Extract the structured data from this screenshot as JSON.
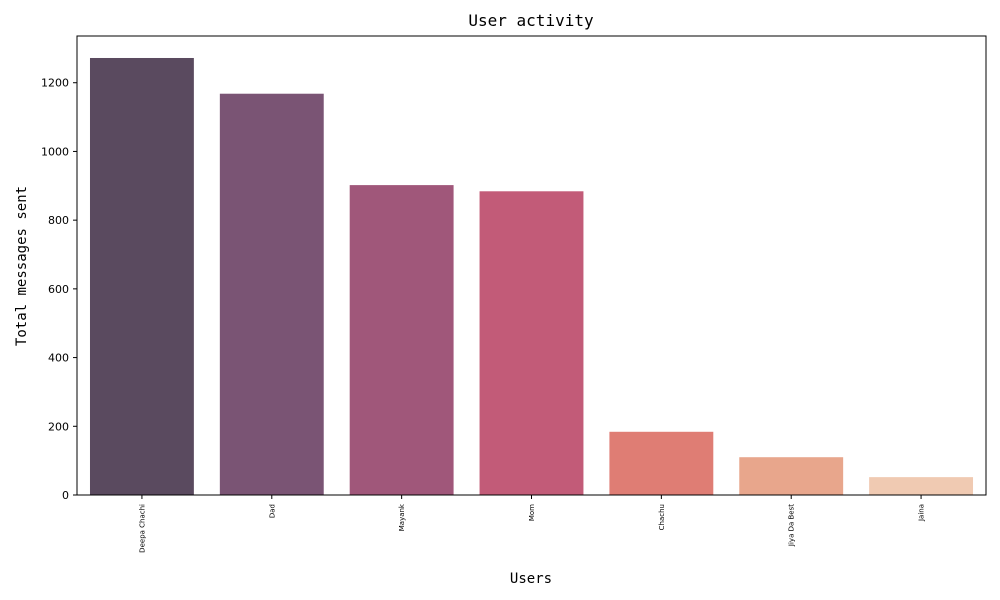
{
  "chart_data": {
    "type": "bar",
    "title": "User activity",
    "xlabel": "Users",
    "ylabel": "Total messages sent",
    "categories": [
      "Deepa Chachi",
      "Dad",
      "Mayank",
      "Mom",
      "Chachu",
      "Jiya Da Best",
      "Jaina"
    ],
    "values": [
      1272,
      1168,
      902,
      884,
      184,
      110,
      52
    ],
    "ylim": [
      0,
      1336
    ],
    "yticks": [
      0,
      200,
      400,
      600,
      800,
      1000,
      1200
    ],
    "bar_colors": [
      "#5a4a5f",
      "#7a5474",
      "#a0577a",
      "#c25b78",
      "#df7d74",
      "#e8a68c",
      "#f0cab2"
    ],
    "grid": false,
    "legend": "none"
  }
}
